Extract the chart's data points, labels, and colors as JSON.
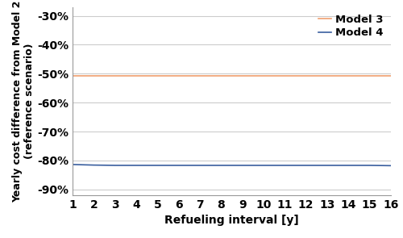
{
  "x": [
    1,
    2,
    3,
    4,
    5,
    6,
    7,
    8,
    9,
    10,
    11,
    12,
    13,
    14,
    15,
    16
  ],
  "model3_y": [
    -0.508,
    -0.508,
    -0.508,
    -0.508,
    -0.508,
    -0.508,
    -0.508,
    -0.508,
    -0.508,
    -0.508,
    -0.508,
    -0.508,
    -0.508,
    -0.508,
    -0.508,
    -0.508
  ],
  "model4_y": [
    -0.814,
    -0.816,
    -0.817,
    -0.817,
    -0.817,
    -0.817,
    -0.817,
    -0.817,
    -0.817,
    -0.817,
    -0.817,
    -0.817,
    -0.817,
    -0.817,
    -0.817,
    -0.818
  ],
  "model3_color": "#f0a070",
  "model4_color": "#3a5f9f",
  "xlabel": "Refueling interval [y]",
  "ylabel": "Yearly cost difference from Model 2\n(reference scenario)",
  "ylim": [
    -0.92,
    -0.27
  ],
  "xlim": [
    1,
    16
  ],
  "yticks": [
    -0.3,
    -0.4,
    -0.5,
    -0.6,
    -0.7,
    -0.8,
    -0.9
  ],
  "xticks": [
    1,
    2,
    3,
    4,
    5,
    6,
    7,
    8,
    9,
    10,
    11,
    12,
    13,
    14,
    15,
    16
  ],
  "legend_labels": [
    "Model 3",
    "Model 4"
  ],
  "grid_color": "#cccccc",
  "background_color": "#ffffff",
  "tick_fontsize": 10,
  "label_fontsize": 10,
  "ylabel_fontsize": 9,
  "legend_fontsize": 9.5
}
